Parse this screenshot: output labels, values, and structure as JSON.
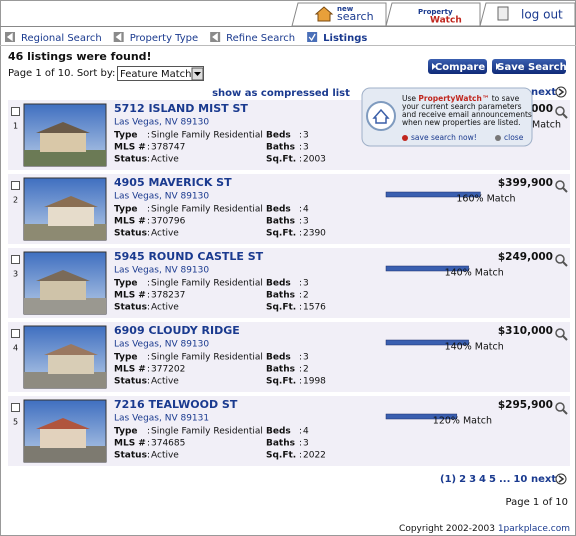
{
  "tabs": {
    "new_small": "new",
    "new_search": "search",
    "watch_top": "Property",
    "watch_bottom": "Watch",
    "log_out": "log out"
  },
  "breadcrumb": [
    "Regional Search",
    "Property Type",
    "Refine Search",
    "Listings"
  ],
  "results": {
    "found": "46 listings were found!",
    "page_sort": "Page 1 of 10. Sort by:",
    "sort": "Feature Match"
  },
  "buttons": {
    "compare": "Compare",
    "save_search": "Save Search"
  },
  "compressed": "show as compressed list",
  "next": "next",
  "popup": {
    "use": "Use",
    "brand": "PropertyWatch™",
    "to_save": "to save",
    "lines": [
      "your current search parameters",
      "and receive email announcements",
      "when new properties are listed."
    ],
    "save_now": "save search now!",
    "close": "close"
  },
  "labels": {
    "type": "Type",
    "mls": "MLS #",
    "status": "Status",
    "beds": "Beds",
    "baths": "Baths",
    "sqft": "Sq.Ft.",
    "separator": ":"
  },
  "listings": [
    {
      "number": 1,
      "address": "5712 ISLAND MIST ST",
      "city": "Las Vegas, NV 89130",
      "type": "Single Family Residential",
      "mls": 378747,
      "status": "Active",
      "beds": 3,
      "baths": 3,
      "sqft": 2003,
      "price": "000",
      "match_label": "Match"
    },
    {
      "number": 2,
      "address": "4905 MAVERICK ST",
      "city": "Las Vegas, NV 89130",
      "type": "Single Family Residential",
      "mls": 370796,
      "status": "Active",
      "beds": 4,
      "baths": 3,
      "sqft": 2390,
      "price": "$399,900",
      "match": 160,
      "match_label": "160% Match"
    },
    {
      "number": 3,
      "address": "5945 ROUND CASTLE ST",
      "city": "Las Vegas, NV 89130",
      "type": "Single Family Residential",
      "mls": 378237,
      "status": "Active",
      "beds": 3,
      "baths": 2,
      "sqft": 1576,
      "price": "$249,000",
      "match": 140,
      "match_label": "140% Match"
    },
    {
      "number": 4,
      "address": "6909 CLOUDY RIDGE",
      "city": "Las Vegas, NV 89130",
      "type": "Single Family Residential",
      "mls": 377202,
      "status": "Active",
      "beds": 3,
      "baths": 2,
      "sqft": 1998,
      "price": "$310,000",
      "match": 140,
      "match_label": "140% Match"
    },
    {
      "number": 5,
      "address": "7216 TEALWOOD ST",
      "city": "Las Vegas, NV 89131",
      "type": "Single Family Residential",
      "mls": 374685,
      "status": "Active",
      "beds": 4,
      "baths": 3,
      "sqft": 2022,
      "price": "$295,900",
      "match": 120,
      "match_label": "120% Match"
    }
  ],
  "pagination": {
    "pages": [
      "(1)",
      "2",
      "3",
      "4",
      "5",
      "...",
      "10"
    ],
    "next": "next",
    "page_info": "Page 1 of 10"
  },
  "footer": {
    "copyright": "Copyright 2002-2003",
    "site": "1parkplace.com"
  }
}
